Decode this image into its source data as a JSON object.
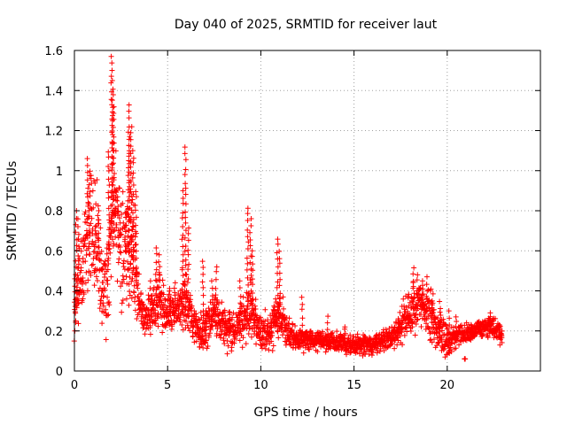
{
  "chart_data": {
    "type": "scatter",
    "title": "Day 040 of 2025, SRMTID for receiver laut",
    "xlabel": "GPS time / hours",
    "ylabel": "SRMTID / TECUs",
    "xlim": [
      0,
      25
    ],
    "ylim": [
      0,
      1.6
    ],
    "xticks": [
      0,
      5,
      10,
      15,
      20
    ],
    "xtick_labels": [
      "0",
      "5",
      "10",
      "15",
      "20"
    ],
    "yticks": [
      0,
      0.2,
      0.4,
      0.6,
      0.8,
      1.0,
      1.2,
      1.4,
      1.6
    ],
    "ytick_labels": [
      "0",
      "0.2",
      "0.4",
      "0.6",
      "0.8",
      "1",
      "1.2",
      "1.4",
      "1.6"
    ],
    "grid": true,
    "marker": "+",
    "series": [
      {
        "name": "SRMTID",
        "color": "#ff0000",
        "envelope": [
          [
            0.0,
            0.3,
            0.15
          ],
          [
            0.3,
            0.45,
            0.25
          ],
          [
            0.6,
            0.65,
            0.3
          ],
          [
            1.0,
            0.75,
            0.35
          ],
          [
            1.3,
            0.55,
            0.3
          ],
          [
            1.7,
            0.35,
            0.2
          ],
          [
            2.1,
            0.85,
            0.4
          ],
          [
            2.5,
            0.6,
            0.3
          ],
          [
            3.0,
            0.6,
            0.35
          ],
          [
            3.5,
            0.3,
            0.12
          ],
          [
            4.0,
            0.28,
            0.1
          ],
          [
            4.5,
            0.35,
            0.15
          ],
          [
            5.0,
            0.3,
            0.12
          ],
          [
            5.5,
            0.3,
            0.12
          ],
          [
            6.0,
            0.35,
            0.2
          ],
          [
            6.5,
            0.22,
            0.1
          ],
          [
            7.0,
            0.2,
            0.12
          ],
          [
            7.5,
            0.3,
            0.12
          ],
          [
            8.0,
            0.22,
            0.1
          ],
          [
            8.5,
            0.2,
            0.1
          ],
          [
            9.0,
            0.25,
            0.12
          ],
          [
            9.5,
            0.3,
            0.15
          ],
          [
            10.0,
            0.18,
            0.1
          ],
          [
            10.5,
            0.2,
            0.1
          ],
          [
            11.0,
            0.28,
            0.12
          ],
          [
            11.5,
            0.18,
            0.08
          ],
          [
            12.0,
            0.16,
            0.06
          ],
          [
            13.0,
            0.15,
            0.05
          ],
          [
            14.0,
            0.14,
            0.05
          ],
          [
            15.0,
            0.13,
            0.05
          ],
          [
            16.0,
            0.13,
            0.05
          ],
          [
            17.0,
            0.17,
            0.06
          ],
          [
            17.5,
            0.22,
            0.08
          ],
          [
            18.0,
            0.3,
            0.12
          ],
          [
            18.5,
            0.35,
            0.12
          ],
          [
            19.0,
            0.28,
            0.12
          ],
          [
            19.5,
            0.2,
            0.1
          ],
          [
            20.0,
            0.15,
            0.08
          ],
          [
            20.5,
            0.18,
            0.06
          ],
          [
            21.0,
            0.18,
            0.05
          ],
          [
            22.0,
            0.22,
            0.05
          ],
          [
            22.5,
            0.22,
            0.06
          ],
          [
            22.9,
            0.18,
            0.05
          ]
        ],
        "spikes": [
          [
            0.05,
            0.46
          ],
          [
            0.1,
            0.8
          ],
          [
            0.2,
            0.76
          ],
          [
            0.4,
            0.45
          ],
          [
            0.7,
            1.06
          ],
          [
            0.8,
            1.0
          ],
          [
            1.15,
            0.72
          ],
          [
            1.3,
            0.8
          ],
          [
            1.5,
            0.4
          ],
          [
            1.85,
            1.1
          ],
          [
            2.0,
            1.57
          ],
          [
            2.05,
            1.45
          ],
          [
            2.1,
            1.32
          ],
          [
            2.2,
            0.9
          ],
          [
            2.4,
            0.7
          ],
          [
            2.75,
            0.8
          ],
          [
            2.9,
            1.33
          ],
          [
            2.95,
            1.17
          ],
          [
            3.05,
            1.22
          ],
          [
            3.15,
            1.1
          ],
          [
            3.3,
            0.9
          ],
          [
            4.1,
            0.45
          ],
          [
            4.4,
            0.62
          ],
          [
            4.55,
            0.58
          ],
          [
            5.1,
            0.42
          ],
          [
            5.4,
            0.45
          ],
          [
            5.8,
            0.9
          ],
          [
            5.95,
            1.12
          ],
          [
            6.1,
            0.72
          ],
          [
            6.9,
            0.55
          ],
          [
            7.05,
            0.3
          ],
          [
            7.4,
            0.45
          ],
          [
            7.6,
            0.52
          ],
          [
            8.3,
            0.3
          ],
          [
            8.9,
            0.45
          ],
          [
            9.3,
            0.82
          ],
          [
            9.45,
            0.76
          ],
          [
            9.55,
            0.6
          ],
          [
            10.7,
            0.3
          ],
          [
            10.9,
            0.66
          ],
          [
            11.0,
            0.6
          ],
          [
            12.2,
            0.37
          ],
          [
            13.6,
            0.28
          ],
          [
            14.5,
            0.22
          ],
          [
            16.2,
            0.18
          ],
          [
            17.4,
            0.26
          ],
          [
            18.2,
            0.52
          ],
          [
            18.4,
            0.48
          ],
          [
            18.7,
            0.45
          ],
          [
            18.9,
            0.47
          ],
          [
            19.2,
            0.35
          ],
          [
            19.6,
            0.35
          ],
          [
            20.1,
            0.3
          ],
          [
            20.5,
            0.28
          ],
          [
            20.95,
            0.06
          ],
          [
            21.3,
            0.24
          ],
          [
            22.3,
            0.3
          ],
          [
            22.8,
            0.24
          ]
        ],
        "point_count": 2300,
        "x_range": [
          0.0,
          22.95
        ],
        "note": "Dense red '+' scatter; envelope entries are [hour, median value, spread] estimated from the plot; spikes are notable peak values in TECUs."
      }
    ]
  }
}
